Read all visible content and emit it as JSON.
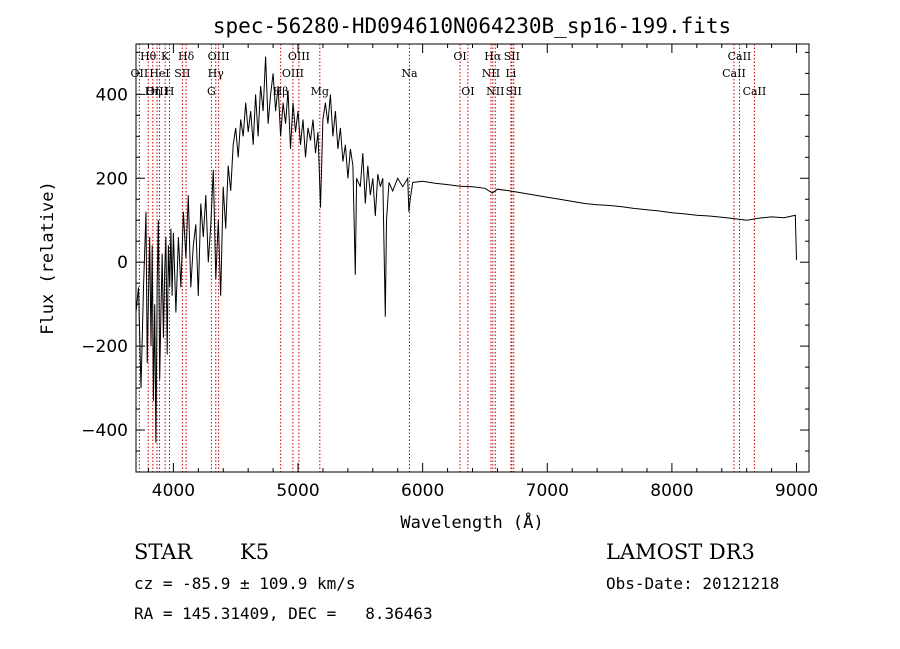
{
  "chart_data": {
    "type": "line",
    "title": "spec-56280-HD094610N064230B_sp16-199.fits",
    "xlabel": "Wavelength (Å)",
    "ylabel": "Flux (relative)",
    "xlim": [
      3700,
      9100
    ],
    "ylim": [
      -500,
      520
    ],
    "x_ticks": [
      4000,
      5000,
      6000,
      7000,
      8000,
      9000
    ],
    "y_ticks": [
      -400,
      -200,
      0,
      200,
      400
    ],
    "spectrum_points": [
      [
        3700,
        -120
      ],
      [
        3720,
        -60
      ],
      [
        3740,
        -300
      ],
      [
        3760,
        -60
      ],
      [
        3780,
        120
      ],
      [
        3790,
        -240
      ],
      [
        3800,
        -80
      ],
      [
        3810,
        60
      ],
      [
        3820,
        -200
      ],
      [
        3830,
        40
      ],
      [
        3840,
        -330
      ],
      [
        3850,
        -100
      ],
      [
        3860,
        -430
      ],
      [
        3870,
        -50
      ],
      [
        3880,
        100
      ],
      [
        3890,
        -280
      ],
      [
        3900,
        -120
      ],
      [
        3910,
        20
      ],
      [
        3920,
        -180
      ],
      [
        3930,
        -20
      ],
      [
        3940,
        60
      ],
      [
        3950,
        -220
      ],
      [
        3960,
        40
      ],
      [
        3970,
        -60
      ],
      [
        3980,
        80
      ],
      [
        3990,
        -80
      ],
      [
        4000,
        70
      ],
      [
        4020,
        -120
      ],
      [
        4040,
        60
      ],
      [
        4060,
        -60
      ],
      [
        4080,
        120
      ],
      [
        4100,
        10
      ],
      [
        4120,
        160
      ],
      [
        4140,
        -60
      ],
      [
        4160,
        40
      ],
      [
        4180,
        90
      ],
      [
        4200,
        -80
      ],
      [
        4220,
        140
      ],
      [
        4240,
        60
      ],
      [
        4260,
        160
      ],
      [
        4280,
        0
      ],
      [
        4300,
        90
      ],
      [
        4320,
        220
      ],
      [
        4340,
        -40
      ],
      [
        4360,
        100
      ],
      [
        4380,
        -80
      ],
      [
        4400,
        180
      ],
      [
        4420,
        80
      ],
      [
        4440,
        230
      ],
      [
        4460,
        170
      ],
      [
        4480,
        280
      ],
      [
        4500,
        320
      ],
      [
        4520,
        250
      ],
      [
        4540,
        340
      ],
      [
        4560,
        300
      ],
      [
        4580,
        380
      ],
      [
        4600,
        310
      ],
      [
        4620,
        360
      ],
      [
        4640,
        280
      ],
      [
        4660,
        400
      ],
      [
        4680,
        300
      ],
      [
        4700,
        420
      ],
      [
        4720,
        360
      ],
      [
        4740,
        490
      ],
      [
        4760,
        330
      ],
      [
        4780,
        400
      ],
      [
        4800,
        450
      ],
      [
        4820,
        360
      ],
      [
        4840,
        420
      ],
      [
        4860,
        300
      ],
      [
        4880,
        380
      ],
      [
        4900,
        330
      ],
      [
        4920,
        410
      ],
      [
        4940,
        270
      ],
      [
        4960,
        380
      ],
      [
        4980,
        310
      ],
      [
        5000,
        360
      ],
      [
        5020,
        280
      ],
      [
        5040,
        340
      ],
      [
        5060,
        250
      ],
      [
        5080,
        320
      ],
      [
        5100,
        290
      ],
      [
        5120,
        340
      ],
      [
        5140,
        260
      ],
      [
        5160,
        310
      ],
      [
        5180,
        130
      ],
      [
        5200,
        340
      ],
      [
        5220,
        380
      ],
      [
        5240,
        330
      ],
      [
        5260,
        400
      ],
      [
        5280,
        300
      ],
      [
        5300,
        360
      ],
      [
        5320,
        270
      ],
      [
        5340,
        320
      ],
      [
        5360,
        240
      ],
      [
        5380,
        280
      ],
      [
        5400,
        200
      ],
      [
        5420,
        270
      ],
      [
        5440,
        230
      ],
      [
        5460,
        -30
      ],
      [
        5470,
        200
      ],
      [
        5500,
        180
      ],
      [
        5520,
        260
      ],
      [
        5540,
        140
      ],
      [
        5560,
        230
      ],
      [
        5580,
        160
      ],
      [
        5600,
        200
      ],
      [
        5620,
        110
      ],
      [
        5640,
        210
      ],
      [
        5660,
        180
      ],
      [
        5680,
        200
      ],
      [
        5690,
        40
      ],
      [
        5700,
        -130
      ],
      [
        5710,
        100
      ],
      [
        5730,
        190
      ],
      [
        5760,
        170
      ],
      [
        5800,
        200
      ],
      [
        5840,
        180
      ],
      [
        5880,
        200
      ],
      [
        5890,
        120
      ],
      [
        5900,
        150
      ],
      [
        5920,
        190
      ],
      [
        6000,
        193
      ],
      [
        6100,
        188
      ],
      [
        6200,
        185
      ],
      [
        6300,
        181
      ],
      [
        6400,
        180
      ],
      [
        6500,
        176
      ],
      [
        6560,
        165
      ],
      [
        6600,
        174
      ],
      [
        6700,
        170
      ],
      [
        6800,
        165
      ],
      [
        6900,
        160
      ],
      [
        7000,
        155
      ],
      [
        7100,
        150
      ],
      [
        7200,
        145
      ],
      [
        7300,
        140
      ],
      [
        7400,
        137
      ],
      [
        7500,
        135
      ],
      [
        7600,
        132
      ],
      [
        7700,
        128
      ],
      [
        7800,
        125
      ],
      [
        7900,
        122
      ],
      [
        8000,
        118
      ],
      [
        8100,
        115
      ],
      [
        8200,
        112
      ],
      [
        8300,
        110
      ],
      [
        8400,
        107
      ],
      [
        8500,
        104
      ],
      [
        8600,
        100
      ],
      [
        8700,
        105
      ],
      [
        8800,
        108
      ],
      [
        8900,
        106
      ],
      [
        8990,
        112
      ],
      [
        9000,
        5
      ]
    ],
    "spectral_lines": [
      {
        "name": "Hθ",
        "wavelength": 3798
      },
      {
        "name": "OII",
        "wavelength": 3727
      },
      {
        "name": "OIII",
        "wavelength": 3869
      },
      {
        "name": "K",
        "wavelength": 3934
      },
      {
        "name": "H",
        "wavelength": 3969
      },
      {
        "name": "HeI",
        "wavelength": 3889
      },
      {
        "name": "Hη",
        "wavelength": 3835
      },
      {
        "name": "Hδ",
        "wavelength": 4102
      },
      {
        "name": "SII",
        "wavelength": 4072
      },
      {
        "name": "OIII",
        "wavelength": 4363
      },
      {
        "name": "Hγ",
        "wavelength": 4340
      },
      {
        "name": "G",
        "wavelength": 4305
      },
      {
        "name": "OIII",
        "wavelength": 4959
      },
      {
        "name": "OIII",
        "wavelength": 5007
      },
      {
        "name": "Hβ",
        "wavelength": 4861
      },
      {
        "name": "Mg",
        "wavelength": 5175
      },
      {
        "name": "Na",
        "wavelength": 5894
      },
      {
        "name": "OI",
        "wavelength": 6300
      },
      {
        "name": "OI",
        "wavelength": 6363
      },
      {
        "name": "Hα",
        "wavelength": 6563
      },
      {
        "name": "NII",
        "wavelength": 6548
      },
      {
        "name": "NII",
        "wavelength": 6583
      },
      {
        "name": "SII",
        "wavelength": 6716
      },
      {
        "name": "SII",
        "wavelength": 6731
      },
      {
        "name": "Li",
        "wavelength": 6708
      },
      {
        "name": "CaII",
        "wavelength": 8542
      },
      {
        "name": "CaII",
        "wavelength": 8498
      },
      {
        "name": "CaII",
        "wavelength": 8662
      }
    ],
    "label_groups": [
      {
        "lines": [
          {
            "text": "Hθ",
            "wave": 3798
          },
          {
            "text": "K",
            "wave": 3934
          },
          {
            "text": "Hδ",
            "wave": 4102
          },
          {
            "text": "OIII",
            "wave": 4363
          },
          {
            "text": "OIII",
            "wave": 5007
          },
          {
            "text": "OI",
            "wave": 6300
          },
          {
            "text": "Hα",
            "wave": 6563
          },
          {
            "text": "SII",
            "wave": 6716
          },
          {
            "text": "CaII",
            "wave": 8542
          }
        ]
      },
      {
        "lines": [
          {
            "text": "OII",
            "wave": 3727
          },
          {
            "text": "HeI",
            "wave": 3889
          },
          {
            "text": "SII",
            "wave": 4072
          },
          {
            "text": "Hγ",
            "wave": 4340
          },
          {
            "text": "OIII",
            "wave": 4959
          },
          {
            "text": "Na",
            "wave": 5894
          },
          {
            "text": "NII",
            "wave": 6548
          },
          {
            "text": "Li",
            "wave": 6708
          },
          {
            "text": "CaII",
            "wave": 8498
          }
        ]
      },
      {
        "lines": [
          {
            "text": "OIII",
            "wave": 3869
          },
          {
            "text": "Hη",
            "wave": 3835
          },
          {
            "text": "H",
            "wave": 3969
          },
          {
            "text": "G",
            "wave": 4305
          },
          {
            "text": "Hβ",
            "wave": 4861
          },
          {
            "text": "Mg",
            "wave": 5175
          },
          {
            "text": "OI",
            "wave": 6363
          },
          {
            "text": "NII",
            "wave": 6583
          },
          {
            "text": "SII",
            "wave": 6731
          },
          {
            "text": "CaII",
            "wave": 8662
          }
        ]
      }
    ]
  },
  "info": {
    "object_class": "STAR",
    "subclass": "K5",
    "survey": "LAMOST DR3",
    "redshift": "cz = -85.9 ± 109.9 km/s",
    "obs_date": "Obs-Date: 20121218",
    "coords": "RA = 145.31409, DEC =   8.36463"
  },
  "colors": {
    "line_marker": "#cc0000",
    "spectrum": "#000000"
  }
}
